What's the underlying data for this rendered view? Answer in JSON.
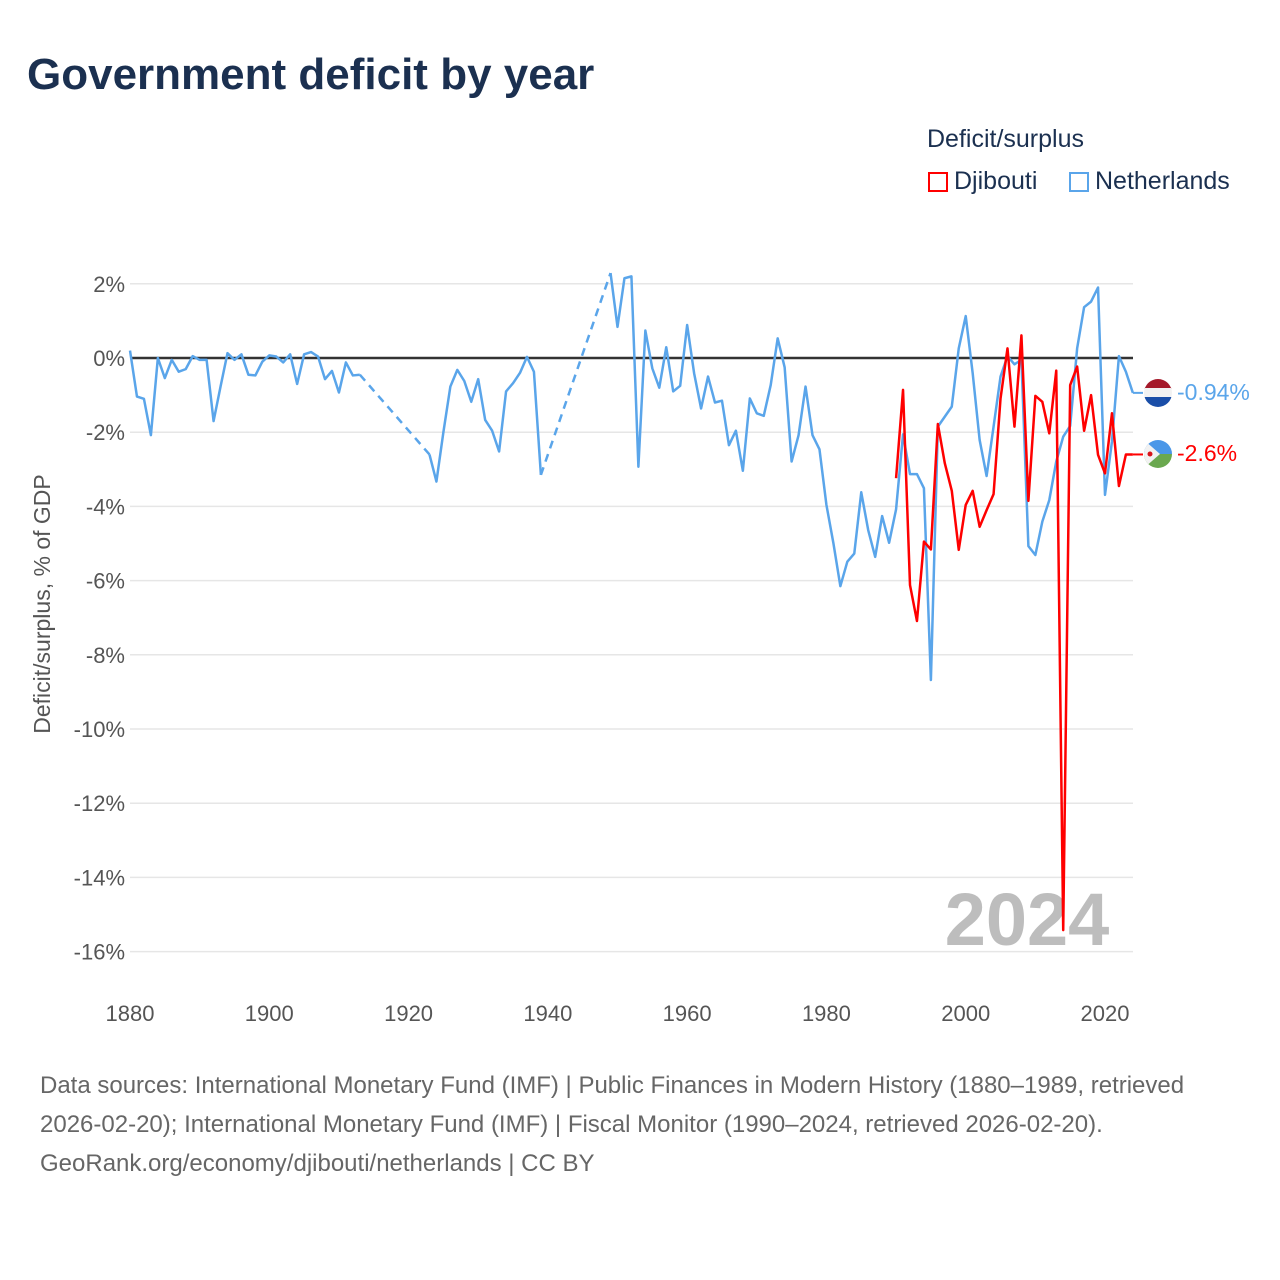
{
  "title": "Government deficit by year",
  "legend": {
    "title": "Deficit/surplus",
    "items": [
      {
        "label": "Djibouti",
        "color": "#ff0000"
      },
      {
        "label": "Netherlands",
        "color": "#5aa5ea"
      }
    ]
  },
  "footer": {
    "sources": "Data sources: International Monetary Fund (IMF) | Public Finances in Modern History (1880–1989, retrieved 2026-02-20); International Monetary Fund (IMF) | Fiscal Monitor (1990–2024, retrieved 2026-02-20).",
    "credit": "GeoRank.org/economy/djibouti/netherlands | CC BY"
  },
  "chart_data": {
    "type": "line",
    "title": "Government deficit by year",
    "xlabel": "",
    "ylabel": "Deficit/surplus, % of GDP",
    "xlim": [
      1880,
      2024
    ],
    "ylim": [
      -17,
      2.5
    ],
    "xticks": [
      1880,
      1900,
      1920,
      1940,
      1960,
      1980,
      2000,
      2020
    ],
    "yticks": [
      2,
      0,
      -2,
      -4,
      -6,
      -8,
      -10,
      -12,
      -14,
      -16
    ],
    "ytick_labels": [
      "2%",
      "0%",
      "-2%",
      "-4%",
      "-6%",
      "-8%",
      "-10%",
      "-12%",
      "-14%",
      "-16%"
    ],
    "grid": true,
    "legend_position": "top-right",
    "year_watermark": "2024",
    "series": [
      {
        "name": "Netherlands",
        "color": "#5aa5ea",
        "start_year": 1880,
        "end_label": "-0.94%",
        "values": [
          0.2,
          -1.04,
          -1.1,
          -2.08,
          0,
          -0.54,
          -0.05,
          -0.37,
          -0.3,
          0.05,
          -0.05,
          -0.05,
          -1.7,
          -0.77,
          0.13,
          -0.05,
          0.1,
          -0.45,
          -0.47,
          -0.1,
          0.07,
          0.04,
          -0.12,
          0.1,
          -0.7,
          0.1,
          0.16,
          0.04,
          -0.57,
          -0.35,
          -0.93,
          -0.12,
          -0.47,
          -0.45,
          null,
          null,
          null,
          null,
          null,
          null,
          null,
          null,
          null,
          -2.6,
          -3.33,
          -2.0,
          -0.77,
          -0.32,
          -0.62,
          -1.18,
          -0.57,
          -1.67,
          -1.96,
          -2.52,
          -0.9,
          -0.68,
          -0.4,
          0.03,
          -0.37,
          -3.15,
          null,
          null,
          null,
          null,
          null,
          null,
          null,
          null,
          null,
          2.29,
          0.84,
          2.15,
          2.2,
          -2.93,
          0.74,
          -0.28,
          -0.8,
          0.29,
          -0.9,
          -0.75,
          0.89,
          -0.41,
          -1.36,
          -0.5,
          -1.2,
          -1.15,
          -2.35,
          -1.96,
          -3.04,
          -1.09,
          -1.49,
          -1.56,
          -0.73,
          0.53,
          -0.25,
          -2.79,
          -2.08,
          -0.77,
          -2.08,
          -2.46,
          -3.96,
          -4.99,
          -6.15,
          -5.49,
          -5.27,
          -3.62,
          -4.64,
          -5.36,
          -4.26,
          -4.98,
          -4.08,
          -2.06,
          -3.13,
          -3.13,
          -3.51,
          -8.68,
          -1.85,
          -1.58,
          -1.31,
          0.26,
          1.13,
          -0.41,
          -2.21,
          -3.18,
          -1.85,
          -0.5,
          0.05,
          -0.17,
          -0.05,
          -5.07,
          -5.31,
          -4.41,
          -3.83,
          -2.79,
          -2.12,
          -1.83,
          0.26,
          1.37,
          1.52,
          1.9,
          -3.69,
          -2.25,
          0.05,
          -0.37,
          -0.94
        ]
      },
      {
        "name": "Djibouti",
        "color": "#ff0000",
        "start_year": 1990,
        "end_label": "-2.6%",
        "values": [
          -3.24,
          -0.86,
          -6.12,
          -7.09,
          -4.95,
          -5.16,
          -1.78,
          -2.84,
          -3.58,
          -5.17,
          -3.96,
          -3.58,
          -4.55,
          -4.1,
          -3.67,
          -1.09,
          0.26,
          -1.85,
          0.61,
          -3.85,
          -1.02,
          -1.18,
          -2.03,
          -0.34,
          -15.42,
          -0.73,
          -0.23,
          -1.96,
          -1.0,
          -2.61,
          -3.11,
          -1.49,
          -3.45,
          -2.6,
          -2.6
        ]
      }
    ]
  }
}
